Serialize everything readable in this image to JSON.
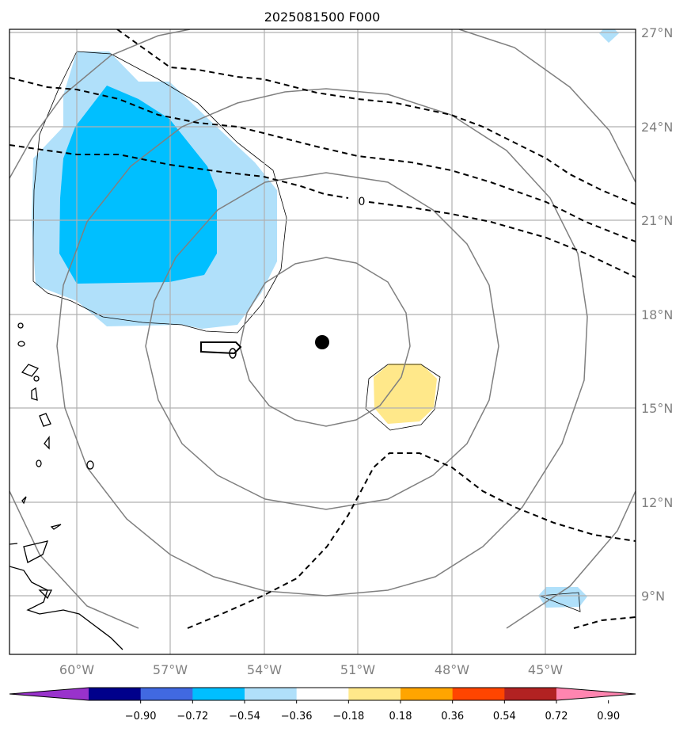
{
  "chart_data": {
    "type": "map",
    "title": "2025081500 F000",
    "lon_range": [
      -62.0,
      -42.0
    ],
    "lat_range": [
      7.0,
      27.0
    ],
    "lon_ticks": [
      -60,
      -57,
      -54,
      -51,
      -48,
      -45
    ],
    "lon_tick_labels": [
      "60°W",
      "57°W",
      "54°W",
      "51°W",
      "48°W",
      "45°W"
    ],
    "lat_ticks": [
      9,
      12,
      15,
      18,
      21,
      24,
      27
    ],
    "lat_tick_labels": [
      "9°N",
      "12°N",
      "15°N",
      "18°N",
      "21°N",
      "24°N",
      "27°N"
    ],
    "grid": true,
    "center_marker": {
      "lon": -52.1,
      "lat": 17.1
    },
    "range_rings_deg": [
      2.7,
      5.5,
      8.3,
      11.1
    ],
    "contour_label": "0",
    "colorbar": {
      "ticks": [
        "−0.90",
        "−0.72",
        "−0.54",
        "−0.36",
        "−0.18",
        "0.18",
        "0.36",
        "0.54",
        "0.72",
        "0.90"
      ],
      "colors": [
        "#9932cc",
        "#00008b",
        "#4169e1",
        "#00bfff",
        "#b0e0fa",
        "#ffffff",
        "#ffe88a",
        "#ffa500",
        "#ff4500",
        "#b22222",
        "#ff85b0"
      ],
      "extend": "both"
    },
    "colors": {
      "grid": "#b0b0b0",
      "ring": "#808080",
      "coast": "#000000",
      "light_blue": "#b0e0fa",
      "deep_sky": "#00bfff",
      "yellow": "#ffe88a"
    }
  }
}
